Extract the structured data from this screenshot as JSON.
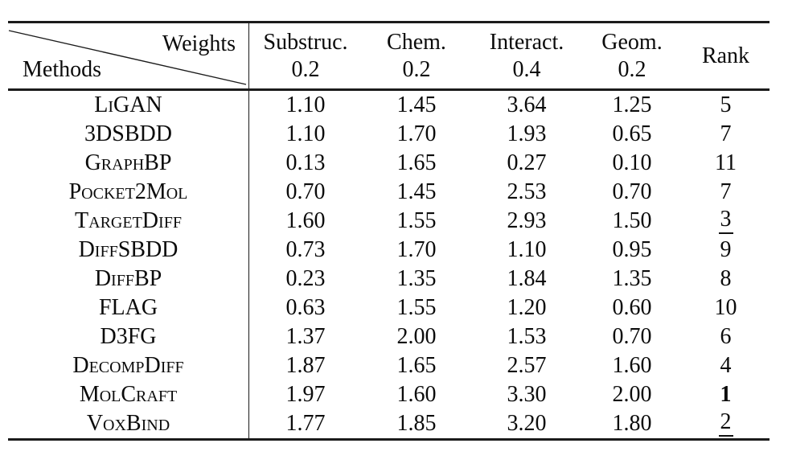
{
  "colors": {
    "background": "#ffffff",
    "text": "#0b0b0b",
    "rule": "#1b1b1b"
  },
  "table": {
    "corner": {
      "top_right": "Weights",
      "bottom_left": "Methods"
    },
    "columns": [
      {
        "label": "Substruc.",
        "weight": "0.2"
      },
      {
        "label": "Chem.",
        "weight": "0.2"
      },
      {
        "label": "Interact.",
        "weight": "0.4"
      },
      {
        "label": "Geom.",
        "weight": "0.2"
      },
      {
        "label": "Rank",
        "weight": ""
      }
    ],
    "rows": [
      {
        "method": "LiGAN",
        "values": [
          "1.10",
          "1.45",
          "3.64",
          "1.25"
        ],
        "rank": {
          "value": "5",
          "style": "normal"
        }
      },
      {
        "method": "3DSBDD",
        "values": [
          "1.10",
          "1.70",
          "1.93",
          "0.65"
        ],
        "rank": {
          "value": "7",
          "style": "normal"
        }
      },
      {
        "method": "GraphBP",
        "values": [
          "0.13",
          "1.65",
          "0.27",
          "0.10"
        ],
        "rank": {
          "value": "11",
          "style": "normal"
        }
      },
      {
        "method": "Pocket2Mol",
        "values": [
          "0.70",
          "1.45",
          "2.53",
          "0.70"
        ],
        "rank": {
          "value": "7",
          "style": "normal"
        }
      },
      {
        "method": "TargetDiff",
        "values": [
          "1.60",
          "1.55",
          "2.93",
          "1.50"
        ],
        "rank": {
          "value": "3",
          "style": "underline"
        }
      },
      {
        "method": "DiffSBDD",
        "values": [
          "0.73",
          "1.70",
          "1.10",
          "0.95"
        ],
        "rank": {
          "value": "9",
          "style": "normal"
        }
      },
      {
        "method": "DiffBP",
        "values": [
          "0.23",
          "1.35",
          "1.84",
          "1.35"
        ],
        "rank": {
          "value": "8",
          "style": "normal"
        }
      },
      {
        "method": "FLAG",
        "values": [
          "0.63",
          "1.55",
          "1.20",
          "0.60"
        ],
        "rank": {
          "value": "10",
          "style": "normal"
        }
      },
      {
        "method": "D3FG",
        "values": [
          "1.37",
          "2.00",
          "1.53",
          "0.70"
        ],
        "rank": {
          "value": "6",
          "style": "normal"
        }
      },
      {
        "method": "DecompDiff",
        "values": [
          "1.87",
          "1.65",
          "2.57",
          "1.60"
        ],
        "rank": {
          "value": "4",
          "style": "normal"
        }
      },
      {
        "method": "MolCraft",
        "values": [
          "1.97",
          "1.60",
          "3.30",
          "2.00"
        ],
        "rank": {
          "value": "1",
          "style": "bold"
        }
      },
      {
        "method": "VoxBind",
        "values": [
          "1.77",
          "1.85",
          "3.20",
          "1.80"
        ],
        "rank": {
          "value": "2",
          "style": "underline"
        }
      }
    ]
  }
}
